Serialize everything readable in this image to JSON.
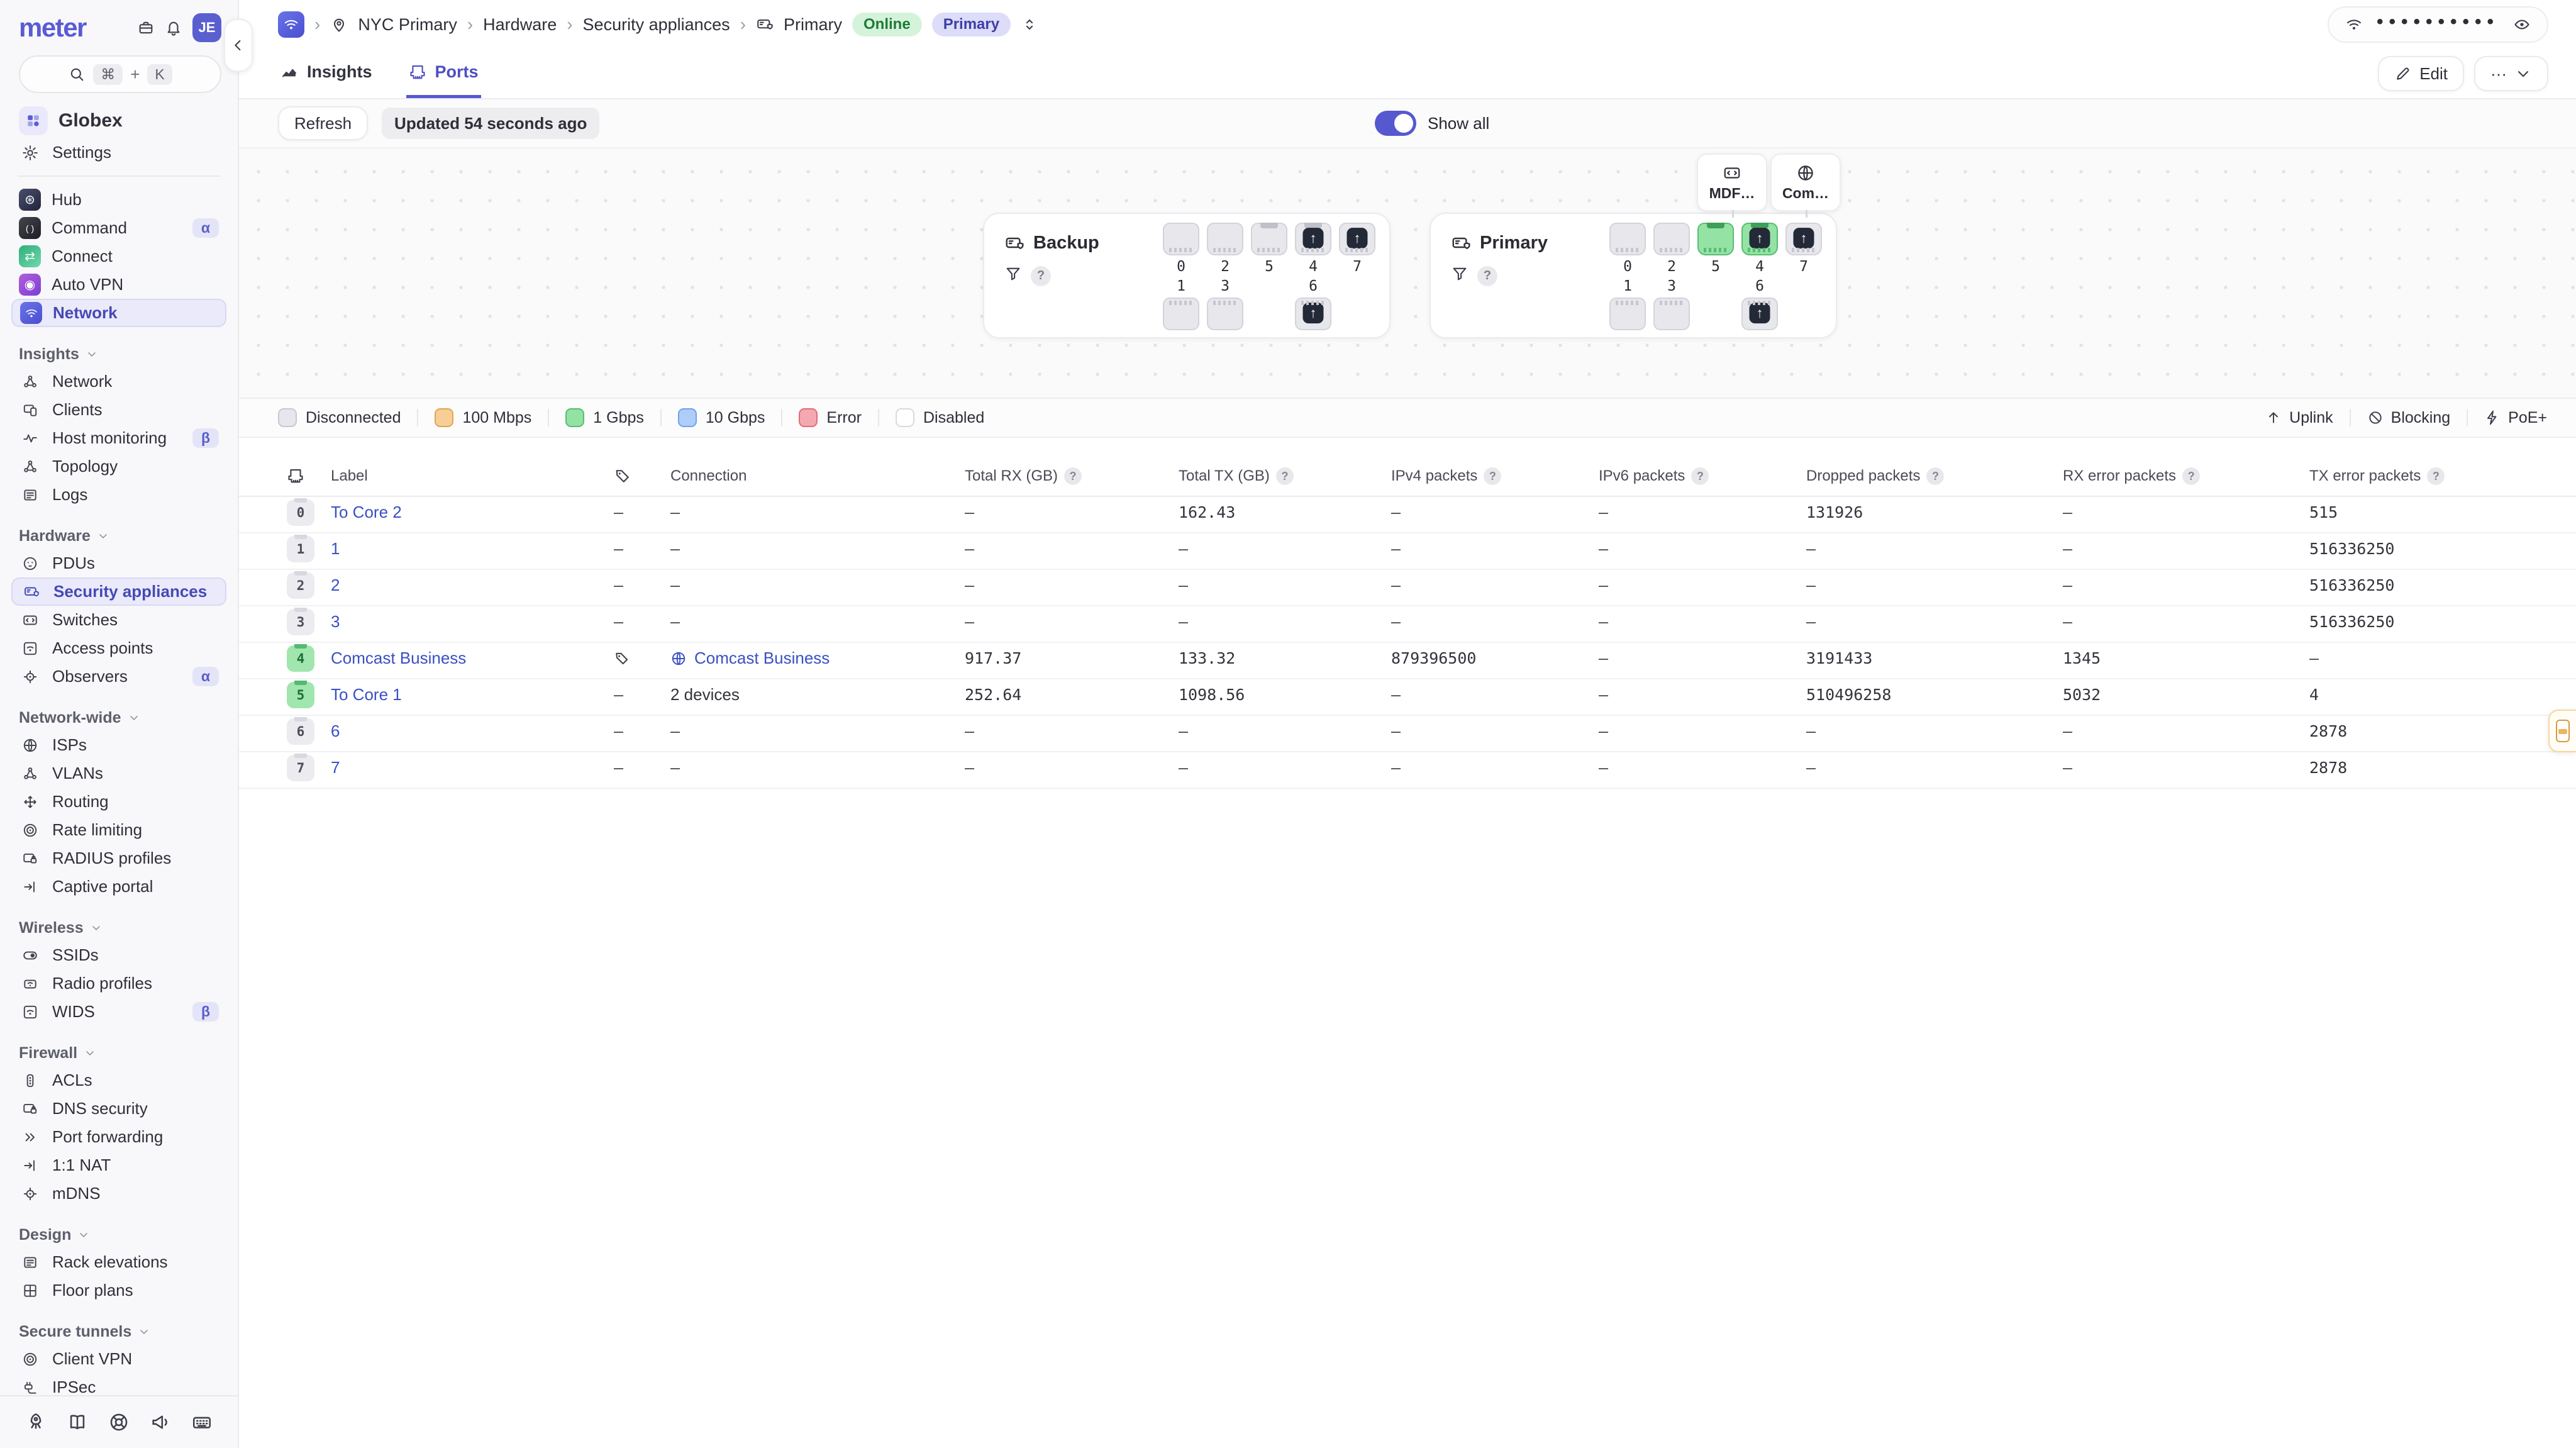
{
  "sidebar": {
    "logo": "meter",
    "avatar": "JE",
    "search": {
      "cmd": "⌘",
      "plus": "+",
      "key": "K"
    },
    "org": {
      "name": "Globex"
    },
    "settings_label": "Settings",
    "apps": [
      {
        "label": "Hub",
        "icon": "hub",
        "glyph": "⊛"
      },
      {
        "label": "Command",
        "icon": "command",
        "glyph": "( )",
        "badge": "α"
      },
      {
        "label": "Connect",
        "icon": "connect",
        "glyph": "⇄"
      },
      {
        "label": "Auto VPN",
        "icon": "autovpn",
        "glyph": "◉"
      },
      {
        "label": "Network",
        "icon": "network",
        "glyph": "",
        "selected": true
      }
    ],
    "sections": [
      {
        "title": "Insights",
        "items": [
          {
            "label": "Network",
            "icon": "network-insights"
          },
          {
            "label": "Clients",
            "icon": "clients"
          },
          {
            "label": "Host monitoring",
            "icon": "host-monitoring",
            "badge": "β"
          },
          {
            "label": "Topology",
            "icon": "topology"
          },
          {
            "label": "Logs",
            "icon": "logs"
          }
        ]
      },
      {
        "title": "Hardware",
        "items": [
          {
            "label": "PDUs",
            "icon": "pdus"
          },
          {
            "label": "Security appliances",
            "icon": "security-appliances",
            "selected": true
          },
          {
            "label": "Switches",
            "icon": "switches"
          },
          {
            "label": "Access points",
            "icon": "access-points"
          },
          {
            "label": "Observers",
            "icon": "observers",
            "badge": "α"
          }
        ]
      },
      {
        "title": "Network-wide",
        "items": [
          {
            "label": "ISPs",
            "icon": "isps"
          },
          {
            "label": "VLANs",
            "icon": "vlans"
          },
          {
            "label": "Routing",
            "icon": "routing"
          },
          {
            "label": "Rate limiting",
            "icon": "rate-limiting"
          },
          {
            "label": "RADIUS profiles",
            "icon": "radius-profiles"
          },
          {
            "label": "Captive portal",
            "icon": "captive-portal"
          }
        ]
      },
      {
        "title": "Wireless",
        "items": [
          {
            "label": "SSIDs",
            "icon": "ssids"
          },
          {
            "label": "Radio profiles",
            "icon": "radio-profiles"
          },
          {
            "label": "WIDS",
            "icon": "wids",
            "badge": "β"
          }
        ]
      },
      {
        "title": "Firewall",
        "items": [
          {
            "label": "ACLs",
            "icon": "acls"
          },
          {
            "label": "DNS security",
            "icon": "dns-security"
          },
          {
            "label": "Port forwarding",
            "icon": "port-forwarding"
          },
          {
            "label": "1:1 NAT",
            "icon": "nat"
          },
          {
            "label": "mDNS",
            "icon": "mdns"
          }
        ]
      },
      {
        "title": "Design",
        "items": [
          {
            "label": "Rack elevations",
            "icon": "rack-elevations"
          },
          {
            "label": "Floor plans",
            "icon": "floor-plans"
          }
        ]
      },
      {
        "title": "Secure tunnels",
        "items": [
          {
            "label": "Client VPN",
            "icon": "client-vpn"
          },
          {
            "label": "IPSec",
            "icon": "ipsec"
          }
        ]
      }
    ],
    "footer_icons": [
      "rocket",
      "book",
      "life-ring",
      "megaphone",
      "keyboard"
    ]
  },
  "topbar": {
    "crumb_sep": "›",
    "site": "NYC Primary",
    "section": "Hardware",
    "subsection": "Security appliances",
    "device": "Primary",
    "status": "Online",
    "role": "Primary",
    "password_dots": "••••••••••"
  },
  "tabs": {
    "insights": "Insights",
    "ports": "Ports"
  },
  "actions": {
    "edit": "Edit",
    "more_dots": "···"
  },
  "toolbar": {
    "refresh": "Refresh",
    "updated": "Updated 54 seconds ago",
    "show_all": "Show all",
    "show_all_on": true
  },
  "devices": [
    {
      "name": "Backup",
      "columns": [
        {
          "top": {
            "n": "0"
          },
          "bottom": {
            "n": "1"
          }
        },
        {
          "top": {
            "n": "2"
          },
          "bottom": {
            "n": "3"
          }
        },
        {
          "top": {
            "n": "5",
            "tab": true
          }
        },
        {
          "top": {
            "n": "4",
            "tab": true,
            "uplink": true
          },
          "bottom": {
            "n": "6",
            "uplink": true
          }
        },
        {
          "top": {
            "n": "7",
            "uplink": true
          }
        }
      ]
    },
    {
      "name": "Primary",
      "columns": [
        {
          "top": {
            "n": "0"
          },
          "bottom": {
            "n": "1"
          }
        },
        {
          "top": {
            "n": "2"
          },
          "bottom": {
            "n": "3"
          }
        },
        {
          "top": {
            "n": "5",
            "tab": true,
            "state": "green"
          }
        },
        {
          "top": {
            "n": "4",
            "tab": true,
            "state": "green",
            "uplink": true
          },
          "bottom": {
            "n": "6",
            "uplink": true
          }
        },
        {
          "top": {
            "n": "7",
            "uplink": true
          }
        }
      ],
      "callouts": [
        {
          "icon": "switch",
          "label": "MDF…"
        },
        {
          "icon": "globe",
          "label": "Com…"
        }
      ]
    }
  ],
  "legend": {
    "items": [
      {
        "label": "Disconnected",
        "fill": "#e6e6ec",
        "stroke": "#c9c9d3"
      },
      {
        "label": "100 Mbps",
        "fill": "#f7cf96",
        "stroke": "#dda751"
      },
      {
        "label": "1 Gbps",
        "fill": "#93e2a4",
        "stroke": "#57bd72"
      },
      {
        "label": "10 Gbps",
        "fill": "#aecdf9",
        "stroke": "#74a0ec"
      },
      {
        "label": "Error",
        "fill": "#f4a9b0",
        "stroke": "#e06c77"
      },
      {
        "label": "Disabled",
        "fill": "#ffffff",
        "stroke": "#d9d9e0"
      }
    ],
    "flags": [
      {
        "icon": "arrow-up",
        "label": "Uplink"
      },
      {
        "icon": "blocked",
        "label": "Blocking"
      },
      {
        "icon": "bolt",
        "label": "PoE+"
      }
    ]
  },
  "table": {
    "help_char": "?",
    "headers": [
      {
        "icon": "rj45"
      },
      {
        "label": "Label"
      },
      {
        "icon": "tag"
      },
      {
        "label": "Connection"
      },
      {
        "label": "Total RX (GB)",
        "help": true
      },
      {
        "label": "Total TX (GB)",
        "help": true
      },
      {
        "label": "IPv4 packets",
        "help": true
      },
      {
        "label": "IPv6 packets",
        "help": true
      },
      {
        "label": "Dropped packets",
        "help": true
      },
      {
        "label": "RX error packets",
        "help": true
      },
      {
        "label": "TX error packets",
        "help": true
      }
    ],
    "rows": [
      {
        "num": "0",
        "badge": "gray",
        "label": "To Core 2",
        "tag": "–",
        "conn": {
          "text": "–"
        },
        "rx": "–",
        "tx": "162.43",
        "ipv4": "–",
        "ipv6": "–",
        "dropped": "131926",
        "rxerr": "–",
        "txerr": "515"
      },
      {
        "num": "1",
        "badge": "gray",
        "label": "1",
        "tag": "–",
        "conn": {
          "text": "–"
        },
        "rx": "–",
        "tx": "–",
        "ipv4": "–",
        "ipv6": "–",
        "dropped": "–",
        "rxerr": "–",
        "txerr": "516336250"
      },
      {
        "num": "2",
        "badge": "gray",
        "label": "2",
        "tag": "–",
        "conn": {
          "text": "–"
        },
        "rx": "–",
        "tx": "–",
        "ipv4": "–",
        "ipv6": "–",
        "dropped": "–",
        "rxerr": "–",
        "txerr": "516336250"
      },
      {
        "num": "3",
        "badge": "gray",
        "label": "3",
        "tag": "–",
        "conn": {
          "text": "–"
        },
        "rx": "–",
        "tx": "–",
        "ipv4": "–",
        "ipv6": "–",
        "dropped": "–",
        "rxerr": "–",
        "txerr": "516336250"
      },
      {
        "num": "4",
        "badge": "green",
        "label": "Comcast Business",
        "tag": "tag",
        "conn": {
          "icon": "globe",
          "text": "Comcast Business",
          "link": true
        },
        "rx": "917.37",
        "tx": "133.32",
        "ipv4": "879396500",
        "ipv6": "–",
        "dropped": "3191433",
        "rxerr": "1345",
        "txerr": "–"
      },
      {
        "num": "5",
        "badge": "green",
        "label": "To Core 1",
        "tag": "–",
        "conn": {
          "text": "2 devices"
        },
        "rx": "252.64",
        "tx": "1098.56",
        "ipv4": "–",
        "ipv6": "–",
        "dropped": "510496258",
        "rxerr": "5032",
        "txerr": "4"
      },
      {
        "num": "6",
        "badge": "gray",
        "label": "6",
        "tag": "–",
        "conn": {
          "text": "–"
        },
        "rx": "–",
        "tx": "–",
        "ipv4": "–",
        "ipv6": "–",
        "dropped": "–",
        "rxerr": "–",
        "txerr": "2878"
      },
      {
        "num": "7",
        "badge": "gray",
        "label": "7",
        "tag": "–",
        "conn": {
          "text": "–"
        },
        "rx": "–",
        "tx": "–",
        "ipv4": "–",
        "ipv6": "–",
        "dropped": "–",
        "rxerr": "–",
        "txerr": "2878"
      }
    ]
  }
}
